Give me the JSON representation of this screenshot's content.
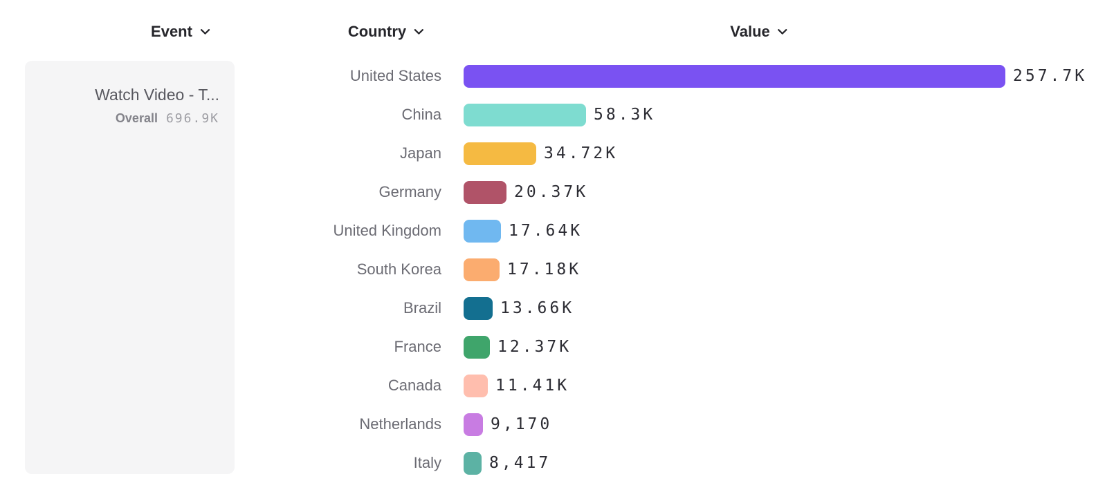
{
  "header": {
    "columns": [
      {
        "id": "event",
        "label": "Event"
      },
      {
        "id": "country",
        "label": "Country"
      },
      {
        "id": "value",
        "label": "Value"
      }
    ]
  },
  "event_panel": {
    "title": "Watch Video - T...",
    "metric_label": "Overall",
    "metric_value": "696.9K"
  },
  "chart_data": {
    "type": "bar",
    "orientation": "horizontal",
    "title": "",
    "xlabel": "Value",
    "ylabel": "Country",
    "legend": false,
    "grid": false,
    "max_value": 257700,
    "categories": [
      "United States",
      "China",
      "Japan",
      "Germany",
      "United Kingdom",
      "South Korea",
      "Brazil",
      "France",
      "Canada",
      "Netherlands",
      "Italy"
    ],
    "values": [
      257700,
      58300,
      34720,
      20370,
      17640,
      17180,
      13660,
      12370,
      11410,
      9170,
      8417
    ],
    "value_labels": [
      "257.7K",
      "58.3K",
      "34.72K",
      "20.37K",
      "17.64K",
      "17.18K",
      "13.66K",
      "12.37K",
      "11.41K",
      "9,170",
      "8,417"
    ],
    "bar_colors": [
      "#7a52f2",
      "#7edcd0",
      "#f5ba42",
      "#b05368",
      "#70b8f0",
      "#fbac6f",
      "#136f90",
      "#3fa56b",
      "#ffbeae",
      "#c87ce2",
      "#5cb2a4"
    ]
  },
  "icons": {
    "chevron_down": "chevron-down-icon"
  },
  "colors": {
    "header_text": "#26262b",
    "country_label": "#6b6b73",
    "value_text": "#2c2c33",
    "card_background": "#f5f5f6",
    "accent_top_bar": "#7a52f2"
  }
}
